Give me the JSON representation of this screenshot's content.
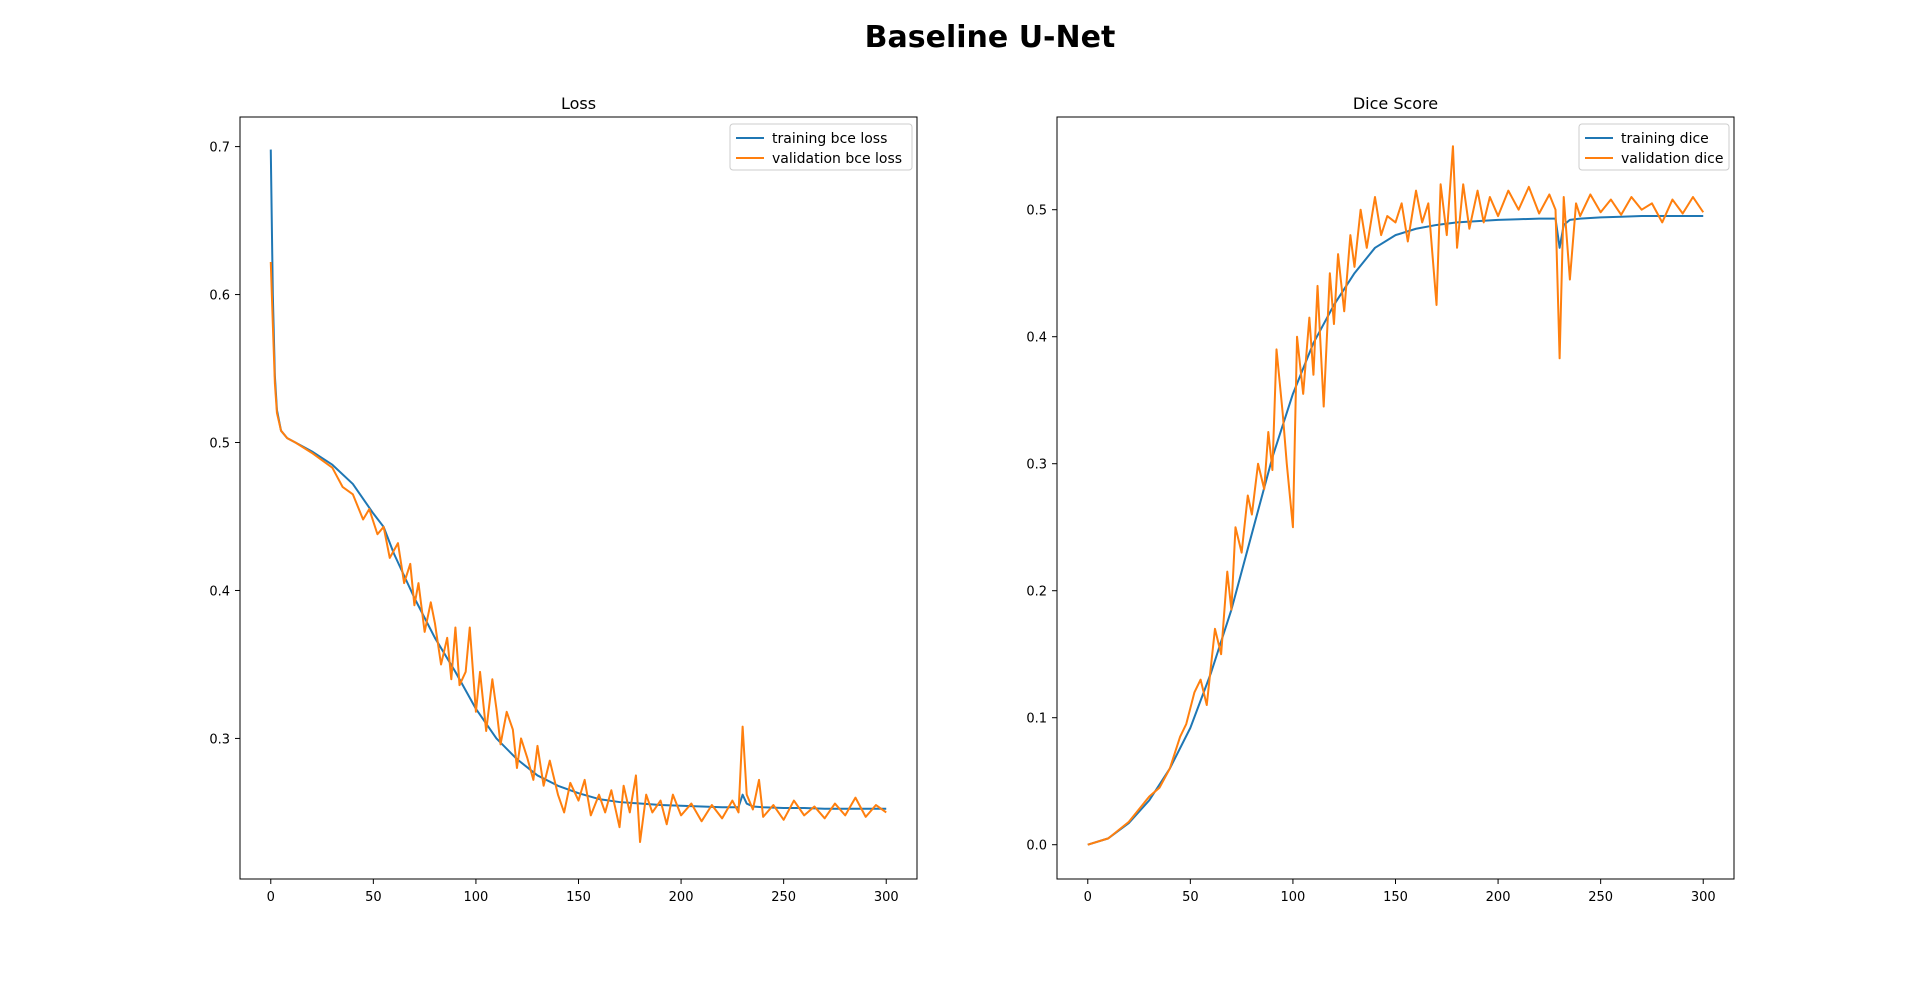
{
  "figure": {
    "title": "Baseline U-Net"
  },
  "colors": {
    "training": "#1f77b4",
    "validation": "#ff7f0e",
    "axes": "#000000",
    "background": "#ffffff"
  },
  "chart_data": [
    {
      "type": "line",
      "title": "Loss",
      "xlabel": "",
      "ylabel": "",
      "xlim": [
        -15,
        315
      ],
      "ylim": [
        0.205,
        0.72
      ],
      "xticks": [
        0,
        50,
        100,
        150,
        200,
        250,
        300
      ],
      "yticks": [
        0.3,
        0.4,
        0.5,
        0.6,
        0.7
      ],
      "grid": false,
      "legend": "top-right",
      "series": [
        {
          "name": "training bce loss",
          "color": "#1f77b4",
          "x": [
            0,
            1,
            2,
            3,
            5,
            8,
            12,
            20,
            30,
            40,
            50,
            55,
            60,
            70,
            80,
            90,
            100,
            110,
            120,
            130,
            140,
            150,
            160,
            170,
            180,
            190,
            200,
            210,
            220,
            228,
            230,
            232,
            235,
            240,
            250,
            260,
            270,
            280,
            290,
            300
          ],
          "y": [
            0.698,
            0.6,
            0.545,
            0.522,
            0.508,
            0.503,
            0.5,
            0.494,
            0.485,
            0.472,
            0.452,
            0.443,
            0.425,
            0.395,
            0.368,
            0.345,
            0.32,
            0.3,
            0.286,
            0.275,
            0.268,
            0.263,
            0.259,
            0.257,
            0.256,
            0.255,
            0.2545,
            0.254,
            0.2535,
            0.2535,
            0.262,
            0.256,
            0.254,
            0.2535,
            0.253,
            0.253,
            0.2525,
            0.2525,
            0.2525,
            0.2525
          ]
        },
        {
          "name": "validation bce loss",
          "color": "#ff7f0e",
          "x": [
            0,
            1,
            2,
            3,
            5,
            8,
            12,
            20,
            30,
            35,
            40,
            45,
            48,
            52,
            55,
            58,
            62,
            65,
            68,
            70,
            72,
            75,
            78,
            80,
            83,
            86,
            88,
            90,
            92,
            95,
            97,
            100,
            102,
            105,
            108,
            110,
            112,
            115,
            118,
            120,
            122,
            125,
            128,
            130,
            133,
            136,
            140,
            143,
            146,
            150,
            153,
            156,
            160,
            163,
            166,
            170,
            172,
            175,
            178,
            180,
            183,
            186,
            190,
            193,
            196,
            200,
            205,
            210,
            215,
            220,
            225,
            228,
            230,
            232,
            235,
            238,
            240,
            245,
            250,
            255,
            260,
            265,
            270,
            275,
            280,
            285,
            290,
            295,
            300
          ],
          "y": [
            0.622,
            0.58,
            0.54,
            0.52,
            0.508,
            0.503,
            0.5,
            0.493,
            0.483,
            0.47,
            0.465,
            0.448,
            0.455,
            0.438,
            0.443,
            0.422,
            0.432,
            0.405,
            0.418,
            0.39,
            0.405,
            0.372,
            0.392,
            0.378,
            0.35,
            0.368,
            0.34,
            0.375,
            0.336,
            0.345,
            0.375,
            0.318,
            0.345,
            0.305,
            0.34,
            0.32,
            0.296,
            0.318,
            0.306,
            0.28,
            0.3,
            0.287,
            0.272,
            0.295,
            0.268,
            0.285,
            0.262,
            0.25,
            0.27,
            0.258,
            0.272,
            0.248,
            0.262,
            0.25,
            0.265,
            0.24,
            0.268,
            0.25,
            0.275,
            0.23,
            0.262,
            0.25,
            0.258,
            0.242,
            0.262,
            0.248,
            0.256,
            0.244,
            0.255,
            0.246,
            0.258,
            0.25,
            0.308,
            0.262,
            0.252,
            0.272,
            0.247,
            0.255,
            0.245,
            0.258,
            0.248,
            0.254,
            0.246,
            0.256,
            0.248,
            0.26,
            0.247,
            0.255,
            0.25
          ]
        }
      ]
    },
    {
      "type": "line",
      "title": "Dice Score",
      "xlabel": "",
      "ylabel": "",
      "xlim": [
        -15,
        315
      ],
      "ylim": [
        -0.027,
        0.573
      ],
      "xticks": [
        0,
        50,
        100,
        150,
        200,
        250,
        300
      ],
      "yticks": [
        0.0,
        0.1,
        0.2,
        0.3,
        0.4,
        0.5
      ],
      "grid": false,
      "legend": "top-right",
      "series": [
        {
          "name": "training dice",
          "color": "#1f77b4",
          "x": [
            0,
            10,
            20,
            30,
            40,
            50,
            60,
            70,
            80,
            90,
            100,
            110,
            120,
            130,
            140,
            150,
            160,
            170,
            180,
            190,
            200,
            210,
            220,
            228,
            230,
            232,
            235,
            240,
            250,
            260,
            270,
            280,
            290,
            300
          ],
          "y": [
            0.0,
            0.005,
            0.017,
            0.035,
            0.06,
            0.092,
            0.135,
            0.185,
            0.245,
            0.305,
            0.355,
            0.395,
            0.425,
            0.45,
            0.47,
            0.48,
            0.485,
            0.488,
            0.49,
            0.491,
            0.492,
            0.4925,
            0.493,
            0.493,
            0.47,
            0.488,
            0.492,
            0.493,
            0.494,
            0.4945,
            0.495,
            0.495,
            0.495,
            0.495
          ]
        },
        {
          "name": "validation dice",
          "color": "#ff7f0e",
          "x": [
            0,
            10,
            20,
            30,
            35,
            40,
            45,
            48,
            52,
            55,
            58,
            62,
            65,
            68,
            70,
            72,
            75,
            78,
            80,
            83,
            86,
            88,
            90,
            92,
            95,
            97,
            100,
            102,
            105,
            108,
            110,
            112,
            115,
            118,
            120,
            122,
            125,
            128,
            130,
            133,
            136,
            140,
            143,
            146,
            150,
            153,
            156,
            160,
            163,
            166,
            170,
            172,
            175,
            178,
            180,
            183,
            186,
            190,
            193,
            196,
            200,
            205,
            210,
            215,
            220,
            225,
            228,
            230,
            232,
            235,
            238,
            240,
            245,
            250,
            255,
            260,
            265,
            270,
            275,
            280,
            285,
            290,
            295,
            300
          ],
          "y": [
            0.0,
            0.005,
            0.018,
            0.038,
            0.045,
            0.06,
            0.085,
            0.095,
            0.12,
            0.13,
            0.11,
            0.17,
            0.15,
            0.215,
            0.185,
            0.25,
            0.23,
            0.275,
            0.26,
            0.3,
            0.28,
            0.325,
            0.295,
            0.39,
            0.34,
            0.3,
            0.25,
            0.4,
            0.355,
            0.415,
            0.37,
            0.44,
            0.345,
            0.45,
            0.41,
            0.465,
            0.42,
            0.48,
            0.455,
            0.5,
            0.47,
            0.51,
            0.48,
            0.495,
            0.49,
            0.505,
            0.475,
            0.515,
            0.49,
            0.505,
            0.425,
            0.52,
            0.48,
            0.55,
            0.47,
            0.52,
            0.485,
            0.515,
            0.49,
            0.51,
            0.495,
            0.515,
            0.5,
            0.518,
            0.497,
            0.512,
            0.5,
            0.383,
            0.51,
            0.445,
            0.505,
            0.495,
            0.512,
            0.498,
            0.508,
            0.496,
            0.51,
            0.5,
            0.505,
            0.49,
            0.508,
            0.497,
            0.51,
            0.498
          ]
        }
      ]
    }
  ]
}
